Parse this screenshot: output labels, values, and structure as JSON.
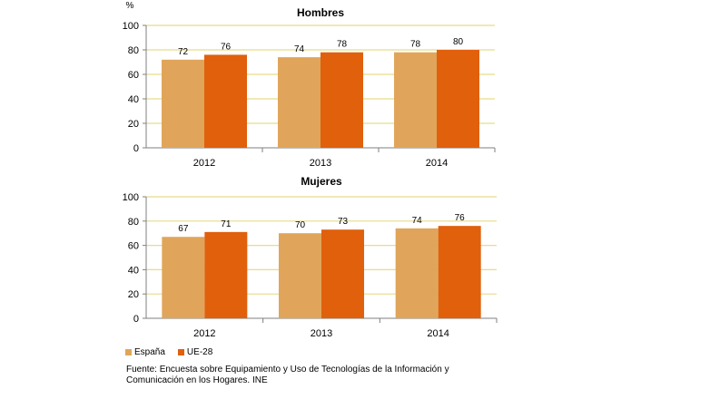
{
  "chart_data": [
    {
      "type": "bar",
      "title": "Hombres",
      "ylabel": "%",
      "categories": [
        "2012",
        "2013",
        "2014"
      ],
      "series": [
        {
          "name": "España",
          "values": [
            72,
            74,
            78
          ]
        },
        {
          "name": "UE-28",
          "values": [
            76,
            78,
            80
          ]
        }
      ],
      "ylim": [
        0,
        100
      ],
      "yticks": [
        0,
        20,
        40,
        60,
        80,
        100
      ],
      "grid": true
    },
    {
      "type": "bar",
      "title": "Mujeres",
      "categories": [
        "2012",
        "2013",
        "2014"
      ],
      "series": [
        {
          "name": "España",
          "values": [
            67,
            70,
            74
          ]
        },
        {
          "name": "UE-28",
          "values": [
            71,
            73,
            76
          ]
        }
      ],
      "ylim": [
        0,
        100
      ],
      "yticks": [
        0,
        20,
        40,
        60,
        80,
        100
      ],
      "grid": true
    }
  ],
  "colors": {
    "espana": "#e0a55a",
    "ue28": "#e0600c",
    "grid": "#e8dc8a",
    "axis": "#7f7f7f"
  },
  "legend": {
    "espana": "España",
    "ue28": "UE-28"
  },
  "source": "Fuente:  Encuesta sobre Equipamiento  y Uso de Tecnologías  de la Información y Comunicación en los Hogares. INE"
}
